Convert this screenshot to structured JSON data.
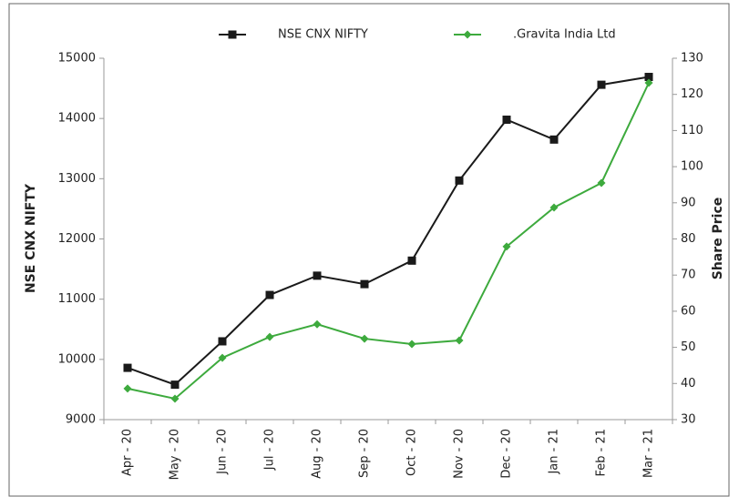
{
  "chart_data": {
    "type": "line",
    "categories": [
      "Apr - 20",
      "May - 20",
      "Jun - 20",
      "Jul - 20",
      "Aug - 20",
      "Sep - 20",
      "Oct - 20",
      "Nov - 20",
      "Dec - 20",
      "Jan - 21",
      "Feb - 21",
      "Mar - 21"
    ],
    "series": [
      {
        "name": "NSE CNX NIFTY",
        "color": "#1a1a1a",
        "marker": "square",
        "values": [
          9860,
          9580,
          10300,
          11070,
          11390,
          11250,
          11640,
          12970,
          13980,
          13650,
          14560,
          14690
        ]
      },
      {
        "name": ".Gravita India Ltd",
        "color": "#3daa3d",
        "marker": "diamond",
        "axis": "y2",
        "values": [
          38.6,
          35.8,
          47.1,
          52.9,
          56.4,
          52.4,
          50.9,
          51.9,
          77.9,
          88.7,
          95.5,
          123.2
        ]
      }
    ],
    "ylabel": "NSE CNX NIFTY",
    "y2label": "Share Price",
    "ylim": [
      9000,
      15000
    ],
    "yticks": [
      9000,
      10000,
      11000,
      12000,
      13000,
      14000,
      15000
    ],
    "y2lim": [
      30,
      130
    ],
    "y2ticks": [
      30,
      40,
      50,
      60,
      70,
      80,
      90,
      100,
      110,
      120,
      130
    ],
    "legend": "top"
  }
}
